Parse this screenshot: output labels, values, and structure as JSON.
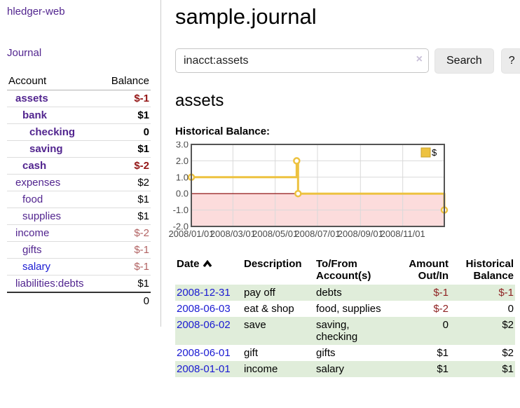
{
  "sidebar": {
    "app_title": "hledger-web",
    "nav": {
      "journal": "Journal"
    },
    "accounts": {
      "header": {
        "account": "Account",
        "balance": "Balance"
      },
      "rows": [
        {
          "name": "assets",
          "balance": "$-1",
          "level": 1,
          "bold": true,
          "negative": true,
          "link": "purple"
        },
        {
          "name": "bank",
          "balance": "$1",
          "level": 2,
          "bold": true,
          "negative": false,
          "link": "purple"
        },
        {
          "name": "checking",
          "balance": "0",
          "level": 3,
          "bold": true,
          "negative": false,
          "link": "purple"
        },
        {
          "name": "saving",
          "balance": "$1",
          "level": 3,
          "bold": true,
          "negative": false,
          "link": "purple"
        },
        {
          "name": "cash",
          "balance": "$-2",
          "level": 2,
          "bold": true,
          "negative": true,
          "link": "purple"
        },
        {
          "name": "expenses",
          "balance": "$2",
          "level": 1,
          "bold": false,
          "negative": false,
          "link": "purple"
        },
        {
          "name": "food",
          "balance": "$1",
          "level": 2,
          "bold": false,
          "negative": false,
          "link": "purple"
        },
        {
          "name": "supplies",
          "balance": "$1",
          "level": 2,
          "bold": false,
          "negative": false,
          "link": "purple"
        },
        {
          "name": "income",
          "balance": "$-2",
          "level": 1,
          "bold": false,
          "negative": true,
          "link": "purple"
        },
        {
          "name": "gifts",
          "balance": "$-1",
          "level": 2,
          "bold": false,
          "negative": true,
          "link": "purple"
        },
        {
          "name": "salary",
          "balance": "$-1",
          "level": 2,
          "bold": false,
          "negative": true,
          "link": "blue"
        },
        {
          "name": "liabilities:debts",
          "balance": "$1",
          "level": 1,
          "bold": false,
          "negative": false,
          "link": "purple"
        }
      ],
      "total": "0"
    }
  },
  "main": {
    "title": "sample.journal",
    "search": {
      "value": "inacct:assets",
      "clear_icon": "×",
      "search_label": "Search",
      "help_label": "?"
    },
    "account_heading": "assets",
    "chart_label": "Historical Balance:"
  },
  "chart_data": {
    "type": "line",
    "step": true,
    "title": "Historical Balance:",
    "legend": [
      {
        "label": "$",
        "color": "#edc240"
      }
    ],
    "legend_position": "top-right",
    "x": [
      "2008-01-01",
      "2008-06-01",
      "2008-06-03",
      "2008-12-31"
    ],
    "series": [
      {
        "name": "$",
        "values": [
          1,
          2,
          0,
          -1
        ]
      }
    ],
    "xlim": [
      "2008-01-01",
      "2008-12-31"
    ],
    "ylim": [
      -2,
      3
    ],
    "grid": true,
    "x_ticks": [
      {
        "date": "2008-01-01",
        "label": "2008/01/01"
      },
      {
        "date": "2008-03-01",
        "label": "2008/03/01"
      },
      {
        "date": "2008-05-01",
        "label": "2008/05/01"
      },
      {
        "date": "2008-07-01",
        "label": "2008/07/01"
      },
      {
        "date": "2008-09-01",
        "label": "2008/09/01"
      },
      {
        "date": "2008-11-01",
        "label": "2008/11/01"
      }
    ],
    "y_ticks": [
      {
        "value": 3,
        "label": "3.0"
      },
      {
        "value": 2,
        "label": "2.0"
      },
      {
        "value": 1,
        "label": "1.0"
      },
      {
        "value": 0,
        "label": "0.0"
      },
      {
        "value": -1,
        "label": "-1.0"
      },
      {
        "value": -2,
        "label": "-2.0"
      }
    ],
    "colors": {
      "line": "#edc240",
      "marker_fill": "#ffffff",
      "legend_border": "#c7a02e",
      "negative_region": "#fcdcdc",
      "zero_line": "#8b0000",
      "grid": "#d9d9d9",
      "border": "#545454",
      "axis_text": "#4a4a4a"
    }
  },
  "register": {
    "headers": [
      {
        "label": "Date",
        "sorted": "asc"
      },
      {
        "label": "Description"
      },
      {
        "label": "To/From Account(s)"
      },
      {
        "label": "Amount Out/In"
      },
      {
        "label": "Historical Balance"
      }
    ],
    "rows": [
      {
        "date": "2008-12-31",
        "description": "pay off",
        "accounts": "debts",
        "amount": "$-1",
        "balance": "$-1",
        "amount_negative": true,
        "balance_negative": true
      },
      {
        "date": "2008-06-03",
        "description": "eat & shop",
        "accounts": "food, supplies",
        "amount": "$-2",
        "balance": "0",
        "amount_negative": true,
        "balance_negative": false
      },
      {
        "date": "2008-06-02",
        "description": "save",
        "accounts": "saving, checking",
        "amount": "0",
        "balance": "$2",
        "amount_negative": false,
        "balance_negative": false
      },
      {
        "date": "2008-06-01",
        "description": "gift",
        "accounts": "gifts",
        "amount": "$1",
        "balance": "$2",
        "amount_negative": false,
        "balance_negative": false
      },
      {
        "date": "2008-01-01",
        "description": "income",
        "accounts": "salary",
        "amount": "$1",
        "balance": "$1",
        "amount_negative": false,
        "balance_negative": false
      }
    ]
  }
}
